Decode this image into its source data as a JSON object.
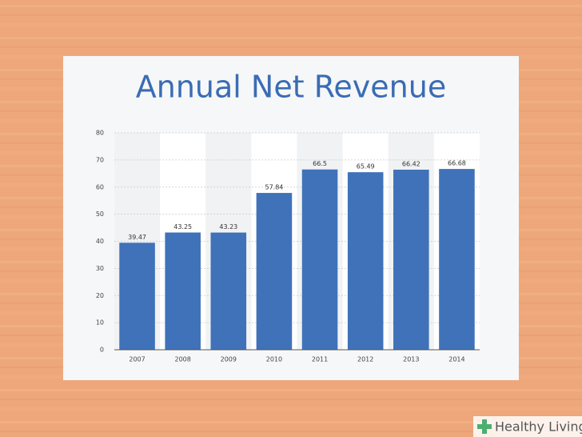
{
  "chart_data": {
    "type": "bar",
    "title": "Annual Net Revenue",
    "categories": [
      "2007",
      "2008",
      "2009",
      "2010",
      "2011",
      "2012",
      "2013",
      "2014"
    ],
    "values": [
      39.47,
      43.25,
      43.23,
      57.84,
      66.5,
      65.49,
      66.42,
      66.68
    ],
    "color": "#3f72b9",
    "ylim": [
      0,
      80
    ],
    "yticks": [
      0,
      10,
      20,
      30,
      40,
      50,
      60,
      70,
      80
    ],
    "grid": true
  },
  "watermark": "Healthy Living"
}
